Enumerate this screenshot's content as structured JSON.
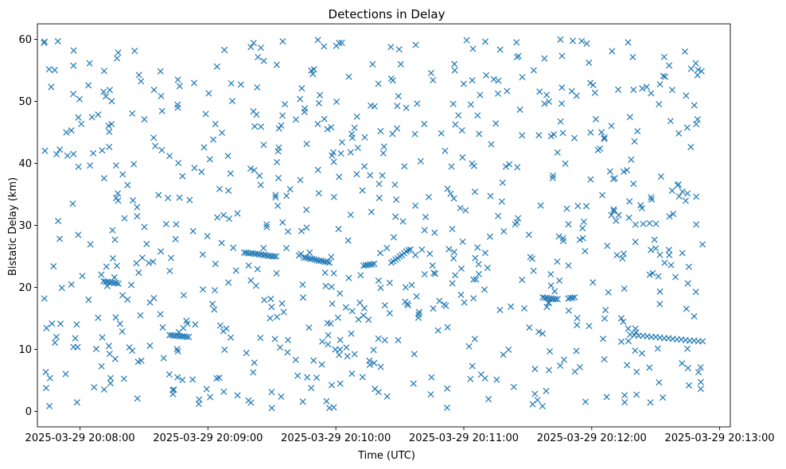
{
  "chart_data": {
    "type": "scatter",
    "title": "Detections in Delay",
    "xlabel": "Time (UTC)",
    "ylabel": "Bistatic Delay (km)",
    "marker": "x",
    "color": "#1f77b4",
    "x_unit": "seconds since 2025-03-29 20:07:40",
    "xlim": [
      0,
      325
    ],
    "ylim": [
      -2.5,
      62.5
    ],
    "x_ticks": [
      {
        "value": 20,
        "label": "2025-03-29 20:08:00"
      },
      {
        "value": 80,
        "label": "2025-03-29 20:09:00"
      },
      {
        "value": 140,
        "label": "2025-03-29 20:10:00"
      },
      {
        "value": 200,
        "label": "2025-03-29 20:11:00"
      },
      {
        "value": 260,
        "label": "2025-03-29 20:12:00"
      },
      {
        "value": 320,
        "label": "2025-03-29 20:13:00"
      }
    ],
    "y_ticks": [
      0,
      10,
      20,
      30,
      40,
      50,
      60
    ],
    "track_points": [
      [
        31,
        21.0
      ],
      [
        32,
        20.9
      ],
      [
        33,
        20.9
      ],
      [
        34,
        20.8
      ],
      [
        35,
        20.8
      ],
      [
        36,
        20.7
      ],
      [
        37,
        20.7
      ],
      [
        38,
        20.6
      ],
      [
        62,
        12.3
      ],
      [
        63,
        12.3
      ],
      [
        64,
        12.2
      ],
      [
        65,
        12.2
      ],
      [
        66,
        12.2
      ],
      [
        67,
        12.1
      ],
      [
        68,
        12.1
      ],
      [
        69,
        12.1
      ],
      [
        70,
        12.0
      ],
      [
        71,
        12.0
      ],
      [
        97,
        25.6
      ],
      [
        98,
        25.6
      ],
      [
        99,
        25.5
      ],
      [
        100,
        25.5
      ],
      [
        101,
        25.5
      ],
      [
        102,
        25.4
      ],
      [
        103,
        25.4
      ],
      [
        104,
        25.3
      ],
      [
        105,
        25.3
      ],
      [
        106,
        25.2
      ],
      [
        107,
        25.2
      ],
      [
        108,
        25.1
      ],
      [
        109,
        25.1
      ],
      [
        110,
        25.0
      ],
      [
        111,
        25.0
      ],
      [
        112,
        25.0
      ],
      [
        125,
        24.8
      ],
      [
        126,
        24.8
      ],
      [
        127,
        24.7
      ],
      [
        128,
        24.6
      ],
      [
        129,
        24.6
      ],
      [
        130,
        24.5
      ],
      [
        131,
        24.4
      ],
      [
        132,
        24.3
      ],
      [
        133,
        24.3
      ],
      [
        134,
        24.2
      ],
      [
        135,
        24.1
      ],
      [
        136,
        24.1
      ],
      [
        137,
        24.0
      ],
      [
        153,
        23.5
      ],
      [
        154,
        23.6
      ],
      [
        155,
        23.6
      ],
      [
        156,
        23.7
      ],
      [
        157,
        23.7
      ],
      [
        158,
        23.8
      ],
      [
        166,
        24.0
      ],
      [
        167,
        24.2
      ],
      [
        168,
        24.5
      ],
      [
        169,
        24.7
      ],
      [
        170,
        25.0
      ],
      [
        171,
        25.2
      ],
      [
        172,
        25.5
      ],
      [
        173,
        25.8
      ],
      [
        174,
        26.0
      ],
      [
        175,
        26.1
      ],
      [
        237,
        18.4
      ],
      [
        238,
        18.3
      ],
      [
        239,
        18.3
      ],
      [
        240,
        18.2
      ],
      [
        241,
        18.2
      ],
      [
        242,
        18.1
      ],
      [
        243,
        18.1
      ],
      [
        244,
        18.1
      ],
      [
        249,
        18.2
      ],
      [
        250,
        18.3
      ],
      [
        251,
        18.3
      ],
      [
        252,
        18.4
      ],
      [
        278,
        12.4
      ],
      [
        280,
        12.3
      ],
      [
        282,
        12.2
      ],
      [
        284,
        12.2
      ],
      [
        286,
        12.1
      ],
      [
        288,
        12.0
      ],
      [
        290,
        12.0
      ],
      [
        292,
        11.9
      ],
      [
        294,
        11.8
      ],
      [
        296,
        11.8
      ],
      [
        298,
        11.7
      ],
      [
        300,
        11.6
      ],
      [
        302,
        11.6
      ],
      [
        304,
        11.5
      ],
      [
        306,
        11.4
      ],
      [
        308,
        11.4
      ],
      [
        310,
        11.3
      ],
      [
        312,
        11.3
      ]
    ],
    "clutter": {
      "points": 760,
      "x_range": [
        3,
        312
      ],
      "y_range": [
        0.5,
        60
      ],
      "seed": 1337
    }
  }
}
